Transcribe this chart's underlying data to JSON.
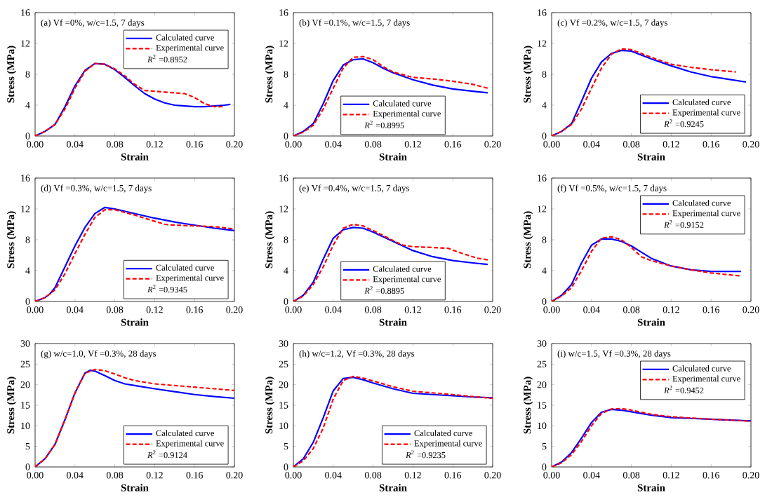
{
  "chart_data": [
    {
      "type": "line",
      "xlabel": "Strain",
      "ylabel": "Stress (MPa)",
      "legend": "top right",
      "annotations": [
        "(a) Vf =0%, w/c=1.5, 7 days",
        "*R*$^{2}$ =0.8952"
      ],
      "xlim": [
        0,
        0.2
      ],
      "ylim": [
        0,
        16
      ],
      "xticks": [
        {
          "value": 0,
          "label": "0.00"
        },
        {
          "value": 0.04,
          "label": "0.04"
        },
        {
          "value": 0.08,
          "label": "0.08"
        },
        {
          "value": 0.12,
          "label": "0.12"
        },
        {
          "value": 0.16,
          "label": "0.16"
        },
        {
          "value": 0.2,
          "label": "0.20"
        }
      ],
      "yticks": [
        0,
        4,
        8,
        12,
        16
      ],
      "series": [
        {
          "name": "Calculated curve",
          "color": "#0000ff",
          "line_style": "solid",
          "x": [
            0,
            0.01,
            0.02,
            0.03,
            0.04,
            0.05,
            0.06,
            0.07,
            0.08,
            0.09,
            0.1,
            0.11,
            0.12,
            0.13,
            0.14,
            0.15,
            0.16,
            0.17,
            0.18,
            0.19,
            0.196
          ],
          "values": [
            0,
            0.6,
            1.5,
            3.8,
            6.5,
            8.5,
            9.4,
            9.3,
            8.6,
            7.6,
            6.5,
            5.5,
            4.8,
            4.3,
            4.0,
            3.9,
            3.8,
            3.8,
            3.9,
            4.0,
            4.1
          ]
        },
        {
          "name": "Experimental curve",
          "color": "#ff0000",
          "line_style": "dashed",
          "x": [
            0,
            0.01,
            0.02,
            0.03,
            0.04,
            0.05,
            0.06,
            0.07,
            0.08,
            0.09,
            0.1,
            0.11,
            0.12,
            0.13,
            0.14,
            0.15,
            0.16,
            0.17,
            0.18,
            0.19
          ],
          "values": [
            0,
            0.6,
            1.5,
            3.5,
            6.2,
            8.4,
            9.4,
            9.3,
            8.7,
            7.8,
            6.7,
            5.9,
            5.8,
            5.7,
            5.6,
            5.5,
            5.0,
            4.2,
            3.8,
            3.8
          ]
        }
      ]
    },
    {
      "type": "line",
      "xlabel": "Strain",
      "ylabel": "Stress (MPa)",
      "legend": "bottom",
      "annotations": [
        "(b) Vf =0.1%, w/c=1.5, 7 days",
        "*R*$^{2}$ =0.8995"
      ],
      "xlim": [
        0,
        0.2
      ],
      "ylim": [
        0,
        16
      ],
      "xticks": [
        {
          "value": 0,
          "label": "0.00"
        },
        {
          "value": 0.04,
          "label": "0.04"
        },
        {
          "value": 0.08,
          "label": "0.08"
        },
        {
          "value": 0.12,
          "label": "0.12"
        },
        {
          "value": 0.16,
          "label": "0.16"
        },
        {
          "value": 0.2,
          "label": "0.20"
        }
      ],
      "yticks": [
        0,
        4,
        8,
        12,
        16
      ],
      "series": [
        {
          "name": "Calculated curve",
          "color": "#0000ff",
          "line_style": "solid",
          "x": [
            0,
            0.01,
            0.02,
            0.03,
            0.04,
            0.05,
            0.06,
            0.07,
            0.08,
            0.09,
            0.1,
            0.12,
            0.14,
            0.16,
            0.18,
            0.195
          ],
          "values": [
            0,
            0.6,
            1.6,
            4.2,
            7.2,
            9.2,
            9.9,
            10.0,
            9.5,
            8.8,
            8.2,
            7.3,
            6.6,
            6.1,
            5.8,
            5.6
          ]
        },
        {
          "name": "Experimental curve",
          "color": "#ff0000",
          "line_style": "dashed",
          "x": [
            0,
            0.01,
            0.02,
            0.03,
            0.04,
            0.05,
            0.06,
            0.07,
            0.08,
            0.09,
            0.1,
            0.12,
            0.14,
            0.16,
            0.18,
            0.195
          ],
          "values": [
            0,
            0.5,
            1.4,
            3.5,
            6.2,
            8.8,
            10.2,
            10.3,
            9.9,
            9.0,
            8.3,
            7.6,
            7.4,
            7.1,
            6.7,
            6.2
          ]
        }
      ]
    },
    {
      "type": "line",
      "xlabel": "Strain",
      "ylabel": "Stress (MPa)",
      "legend": "bottom right",
      "annotations": [
        "(c) Vf =0.2%, w/c=1.5, 7 days",
        "*R*$^{2}$ =0.9245"
      ],
      "xlim": [
        0,
        0.2
      ],
      "ylim": [
        0,
        16
      ],
      "xticks": [
        {
          "value": 0,
          "label": "0.00"
        },
        {
          "value": 0.04,
          "label": "0.04"
        },
        {
          "value": 0.08,
          "label": "0.08"
        },
        {
          "value": 0.12,
          "label": "0.12"
        },
        {
          "value": 0.16,
          "label": "0.16"
        },
        {
          "value": 0.2,
          "label": "0.20"
        }
      ],
      "yticks": [
        0,
        4,
        8,
        12,
        16
      ],
      "series": [
        {
          "name": "Calculated curve",
          "color": "#0000ff",
          "line_style": "solid",
          "x": [
            0,
            0.01,
            0.02,
            0.03,
            0.04,
            0.05,
            0.06,
            0.07,
            0.08,
            0.09,
            0.1,
            0.12,
            0.14,
            0.16,
            0.18,
            0.195
          ],
          "values": [
            0,
            0.6,
            1.6,
            4.5,
            7.5,
            9.6,
            10.7,
            11.1,
            11.0,
            10.5,
            10.0,
            9.1,
            8.3,
            7.7,
            7.3,
            7.0
          ]
        },
        {
          "name": "Experimental curve",
          "color": "#ff0000",
          "line_style": "dashed",
          "x": [
            0,
            0.01,
            0.02,
            0.03,
            0.04,
            0.05,
            0.06,
            0.07,
            0.08,
            0.09,
            0.1,
            0.12,
            0.14,
            0.16,
            0.185
          ],
          "values": [
            0,
            0.6,
            1.5,
            3.5,
            6.2,
            8.8,
            10.6,
            11.3,
            11.2,
            10.7,
            10.2,
            9.3,
            8.9,
            8.6,
            8.3
          ]
        }
      ]
    },
    {
      "type": "line",
      "xlabel": "Strain",
      "ylabel": "Stress (MPa)",
      "legend": "bottom right",
      "annotations": [
        "(d) Vf =0.3%, w/c=1.5, 7 days",
        "*R*$^{2}$ =0.9345"
      ],
      "xlim": [
        0,
        0.2
      ],
      "ylim": [
        0,
        16
      ],
      "xticks": [
        {
          "value": 0,
          "label": "0.00"
        },
        {
          "value": 0.04,
          "label": "0.04"
        },
        {
          "value": 0.08,
          "label": "0.08"
        },
        {
          "value": 0.12,
          "label": "0.12"
        },
        {
          "value": 0.16,
          "label": "0.16"
        },
        {
          "value": 0.2,
          "label": "0.20"
        }
      ],
      "yticks": [
        0,
        4,
        8,
        12,
        16
      ],
      "series": [
        {
          "name": "Calculated curve",
          "color": "#0000ff",
          "line_style": "solid",
          "x": [
            0,
            0.01,
            0.015,
            0.02,
            0.03,
            0.04,
            0.05,
            0.06,
            0.07,
            0.08,
            0.1,
            0.12,
            0.14,
            0.16,
            0.18,
            0.2
          ],
          "values": [
            0,
            0.5,
            1.0,
            1.8,
            4.5,
            7.2,
            9.6,
            11.4,
            12.2,
            12.0,
            11.4,
            10.8,
            10.3,
            9.9,
            9.5,
            9.2
          ]
        },
        {
          "name": "Experimental curve",
          "color": "#ff0000",
          "line_style": "dashed",
          "x": [
            0,
            0.01,
            0.02,
            0.03,
            0.04,
            0.05,
            0.06,
            0.07,
            0.08,
            0.1,
            0.12,
            0.13,
            0.14,
            0.16,
            0.18,
            0.2
          ],
          "values": [
            0,
            0.5,
            1.5,
            3.6,
            6.2,
            8.7,
            10.9,
            11.9,
            11.9,
            11.2,
            10.4,
            10.0,
            9.9,
            9.8,
            9.7,
            9.4
          ]
        }
      ]
    },
    {
      "type": "line",
      "xlabel": "Strain",
      "ylabel": "Stress (MPa)",
      "legend": "bottom",
      "annotations": [
        "(e) Vf =0.4%, w/c=1.5, 7 days",
        "*R*$^{2}$ =0.8895"
      ],
      "xlim": [
        0,
        0.2
      ],
      "ylim": [
        0,
        16
      ],
      "xticks": [
        {
          "value": 0,
          "label": "0.00"
        },
        {
          "value": 0.04,
          "label": "0.04"
        },
        {
          "value": 0.08,
          "label": "0.08"
        },
        {
          "value": 0.12,
          "label": "0.12"
        },
        {
          "value": 0.16,
          "label": "0.16"
        },
        {
          "value": 0.2,
          "label": "0.20"
        }
      ],
      "yticks": [
        0,
        4,
        8,
        12,
        16
      ],
      "series": [
        {
          "name": "Calculated curve",
          "color": "#0000ff",
          "line_style": "solid",
          "x": [
            0,
            0.01,
            0.02,
            0.03,
            0.04,
            0.05,
            0.06,
            0.07,
            0.08,
            0.1,
            0.12,
            0.14,
            0.16,
            0.18,
            0.195
          ],
          "values": [
            0,
            0.8,
            2.5,
            5.5,
            8.2,
            9.3,
            9.6,
            9.5,
            9.0,
            7.8,
            6.6,
            5.8,
            5.3,
            5.0,
            4.8
          ]
        },
        {
          "name": "Experimental curve",
          "color": "#ff0000",
          "line_style": "dashed",
          "x": [
            0,
            0.01,
            0.02,
            0.03,
            0.04,
            0.05,
            0.06,
            0.07,
            0.08,
            0.1,
            0.11,
            0.12,
            0.14,
            0.155,
            0.17,
            0.185,
            0.195
          ],
          "values": [
            0,
            0.7,
            2.2,
            4.5,
            7.3,
            9.5,
            10.0,
            9.8,
            9.2,
            7.9,
            7.3,
            7.1,
            7.0,
            6.9,
            6.2,
            5.6,
            5.4
          ]
        }
      ]
    },
    {
      "type": "line",
      "xlabel": "Strain",
      "ylabel": "Stress (MPa)",
      "legend": "top right",
      "annotations": [
        "(f) Vf =0.5%, w/c=1.5, 7 days",
        "*R*$^{2}$ =0.9152"
      ],
      "xlim": [
        0,
        0.2
      ],
      "ylim": [
        0,
        16
      ],
      "xticks": [
        {
          "value": 0,
          "label": "0.00"
        },
        {
          "value": 0.04,
          "label": "0.04"
        },
        {
          "value": 0.08,
          "label": "0.08"
        },
        {
          "value": 0.12,
          "label": "0.12"
        },
        {
          "value": 0.16,
          "label": "0.16"
        },
        {
          "value": 0.2,
          "label": "0.20"
        }
      ],
      "yticks": [
        0,
        4,
        8,
        12,
        16
      ],
      "series": [
        {
          "name": "Calculated curve",
          "color": "#0000ff",
          "line_style": "solid",
          "x": [
            0,
            0.01,
            0.02,
            0.03,
            0.04,
            0.05,
            0.06,
            0.07,
            0.08,
            0.09,
            0.1,
            0.12,
            0.14,
            0.16,
            0.19
          ],
          "values": [
            0,
            0.8,
            2.2,
            5.0,
            7.3,
            8.1,
            8.1,
            7.8,
            7.2,
            6.4,
            5.6,
            4.6,
            4.1,
            3.9,
            3.9
          ]
        },
        {
          "name": "Experimental curve",
          "color": "#ff0000",
          "line_style": "dashed",
          "x": [
            0,
            0.01,
            0.02,
            0.03,
            0.04,
            0.05,
            0.06,
            0.07,
            0.08,
            0.09,
            0.1,
            0.12,
            0.14,
            0.16,
            0.19
          ],
          "values": [
            0,
            0.7,
            1.8,
            4.0,
            6.5,
            8.2,
            8.4,
            8.0,
            7.0,
            5.8,
            5.3,
            4.6,
            4.1,
            3.7,
            3.3
          ]
        }
      ]
    },
    {
      "type": "line",
      "xlabel": "Strain",
      "ylabel": "Stress (MPa)",
      "legend": "bottom right",
      "annotations": [
        "(g) w/c=1.0, Vf =0.3%, 28 days",
        "*R*$^{2}$ =0.9124"
      ],
      "xlim": [
        0,
        0.2
      ],
      "ylim": [
        0,
        30
      ],
      "xticks": [
        {
          "value": 0,
          "label": "0.00"
        },
        {
          "value": 0.04,
          "label": "0.04"
        },
        {
          "value": 0.08,
          "label": "0.08"
        },
        {
          "value": 0.12,
          "label": "0.12"
        },
        {
          "value": 0.16,
          "label": "0.16"
        },
        {
          "value": 0.2,
          "label": "0.20"
        }
      ],
      "yticks": [
        0,
        5,
        10,
        15,
        20,
        25,
        30
      ],
      "series": [
        {
          "name": "Calculated curve",
          "color": "#0000ff",
          "line_style": "solid",
          "x": [
            0,
            0.01,
            0.02,
            0.03,
            0.04,
            0.05,
            0.055,
            0.06,
            0.07,
            0.08,
            0.09,
            0.1,
            0.12,
            0.14,
            0.16,
            0.18,
            0.2
          ],
          "values": [
            0,
            2.0,
            5.5,
            11.5,
            18.0,
            22.8,
            23.5,
            23.3,
            22.2,
            21.0,
            20.2,
            19.8,
            19.0,
            18.3,
            17.6,
            17.1,
            16.7
          ]
        },
        {
          "name": "Experimental curve",
          "color": "#ff0000",
          "line_style": "dashed",
          "x": [
            0,
            0.01,
            0.02,
            0.03,
            0.04,
            0.05,
            0.06,
            0.07,
            0.08,
            0.09,
            0.1,
            0.12,
            0.14,
            0.16,
            0.18,
            0.2
          ],
          "values": [
            0,
            2.0,
            5.5,
            11.5,
            18.0,
            22.8,
            23.7,
            23.4,
            22.6,
            21.7,
            21.0,
            20.2,
            19.8,
            19.4,
            19.0,
            18.6
          ]
        }
      ]
    },
    {
      "type": "line",
      "xlabel": "Strain",
      "ylabel": "Stress (MPa)",
      "legend": "bottom right",
      "annotations": [
        "(h) w/c=1.2, Vf =0.3%, 28 days",
        "*R*$^{2}$ =0.9235"
      ],
      "xlim": [
        0,
        0.2
      ],
      "ylim": [
        0,
        30
      ],
      "xticks": [
        {
          "value": 0,
          "label": "0.00"
        },
        {
          "value": 0.04,
          "label": "0.04"
        },
        {
          "value": 0.08,
          "label": "0.08"
        },
        {
          "value": 0.12,
          "label": "0.12"
        },
        {
          "value": 0.16,
          "label": "0.16"
        },
        {
          "value": 0.2,
          "label": "0.20"
        }
      ],
      "yticks": [
        0,
        5,
        10,
        15,
        20,
        25,
        30
      ],
      "series": [
        {
          "name": "Calculated curve",
          "color": "#0000ff",
          "line_style": "solid",
          "x": [
            0,
            0.01,
            0.02,
            0.03,
            0.04,
            0.05,
            0.06,
            0.07,
            0.08,
            0.1,
            0.12,
            0.14,
            0.16,
            0.18,
            0.2
          ],
          "values": [
            0,
            2.0,
            6.0,
            12.0,
            18.5,
            21.5,
            21.8,
            21.2,
            20.4,
            19.0,
            17.9,
            17.6,
            17.3,
            17.0,
            16.8
          ]
        },
        {
          "name": "Experimental curve",
          "color": "#ff0000",
          "line_style": "dashed",
          "x": [
            0,
            0.01,
            0.02,
            0.03,
            0.04,
            0.05,
            0.06,
            0.07,
            0.08,
            0.1,
            0.12,
            0.14,
            0.16,
            0.18,
            0.2
          ],
          "values": [
            0,
            1.5,
            4.5,
            9.5,
            16.5,
            21.0,
            22.0,
            21.6,
            20.9,
            19.5,
            18.4,
            18.0,
            17.6,
            17.1,
            16.7
          ]
        }
      ]
    },
    {
      "type": "line",
      "xlabel": "Strain",
      "ylabel": "Stress (MPa)",
      "legend": "top right",
      "annotations": [
        "(i) w/c=1.5, Vf =0.3%, 28 days",
        "*R*$^{2}$ =0.9452"
      ],
      "xlim": [
        0,
        0.2
      ],
      "ylim": [
        0,
        30
      ],
      "xticks": [
        {
          "value": 0,
          "label": "0.00"
        },
        {
          "value": 0.04,
          "label": "0.04"
        },
        {
          "value": 0.08,
          "label": "0.08"
        },
        {
          "value": 0.12,
          "label": "0.12"
        },
        {
          "value": 0.16,
          "label": "0.16"
        },
        {
          "value": 0.2,
          "label": "0.20"
        }
      ],
      "yticks": [
        0,
        5,
        10,
        15,
        20,
        25,
        30
      ],
      "series": [
        {
          "name": "Calculated curve",
          "color": "#0000ff",
          "line_style": "solid",
          "x": [
            0,
            0.01,
            0.02,
            0.03,
            0.04,
            0.05,
            0.06,
            0.07,
            0.08,
            0.1,
            0.12,
            0.14,
            0.16,
            0.18,
            0.2
          ],
          "values": [
            0,
            1.2,
            3.5,
            7.0,
            10.8,
            13.3,
            14.0,
            13.8,
            13.4,
            12.6,
            12.0,
            11.8,
            11.6,
            11.4,
            11.2
          ]
        },
        {
          "name": "Experimental curve",
          "color": "#ff0000",
          "line_style": "dashed",
          "x": [
            0,
            0.01,
            0.02,
            0.03,
            0.04,
            0.05,
            0.06,
            0.07,
            0.08,
            0.1,
            0.12,
            0.14,
            0.16,
            0.18,
            0.2
          ],
          "values": [
            0,
            1.0,
            3.0,
            6.2,
            10.0,
            13.0,
            14.1,
            14.2,
            13.8,
            12.8,
            12.2,
            11.9,
            11.6,
            11.4,
            11.1
          ]
        }
      ]
    }
  ]
}
